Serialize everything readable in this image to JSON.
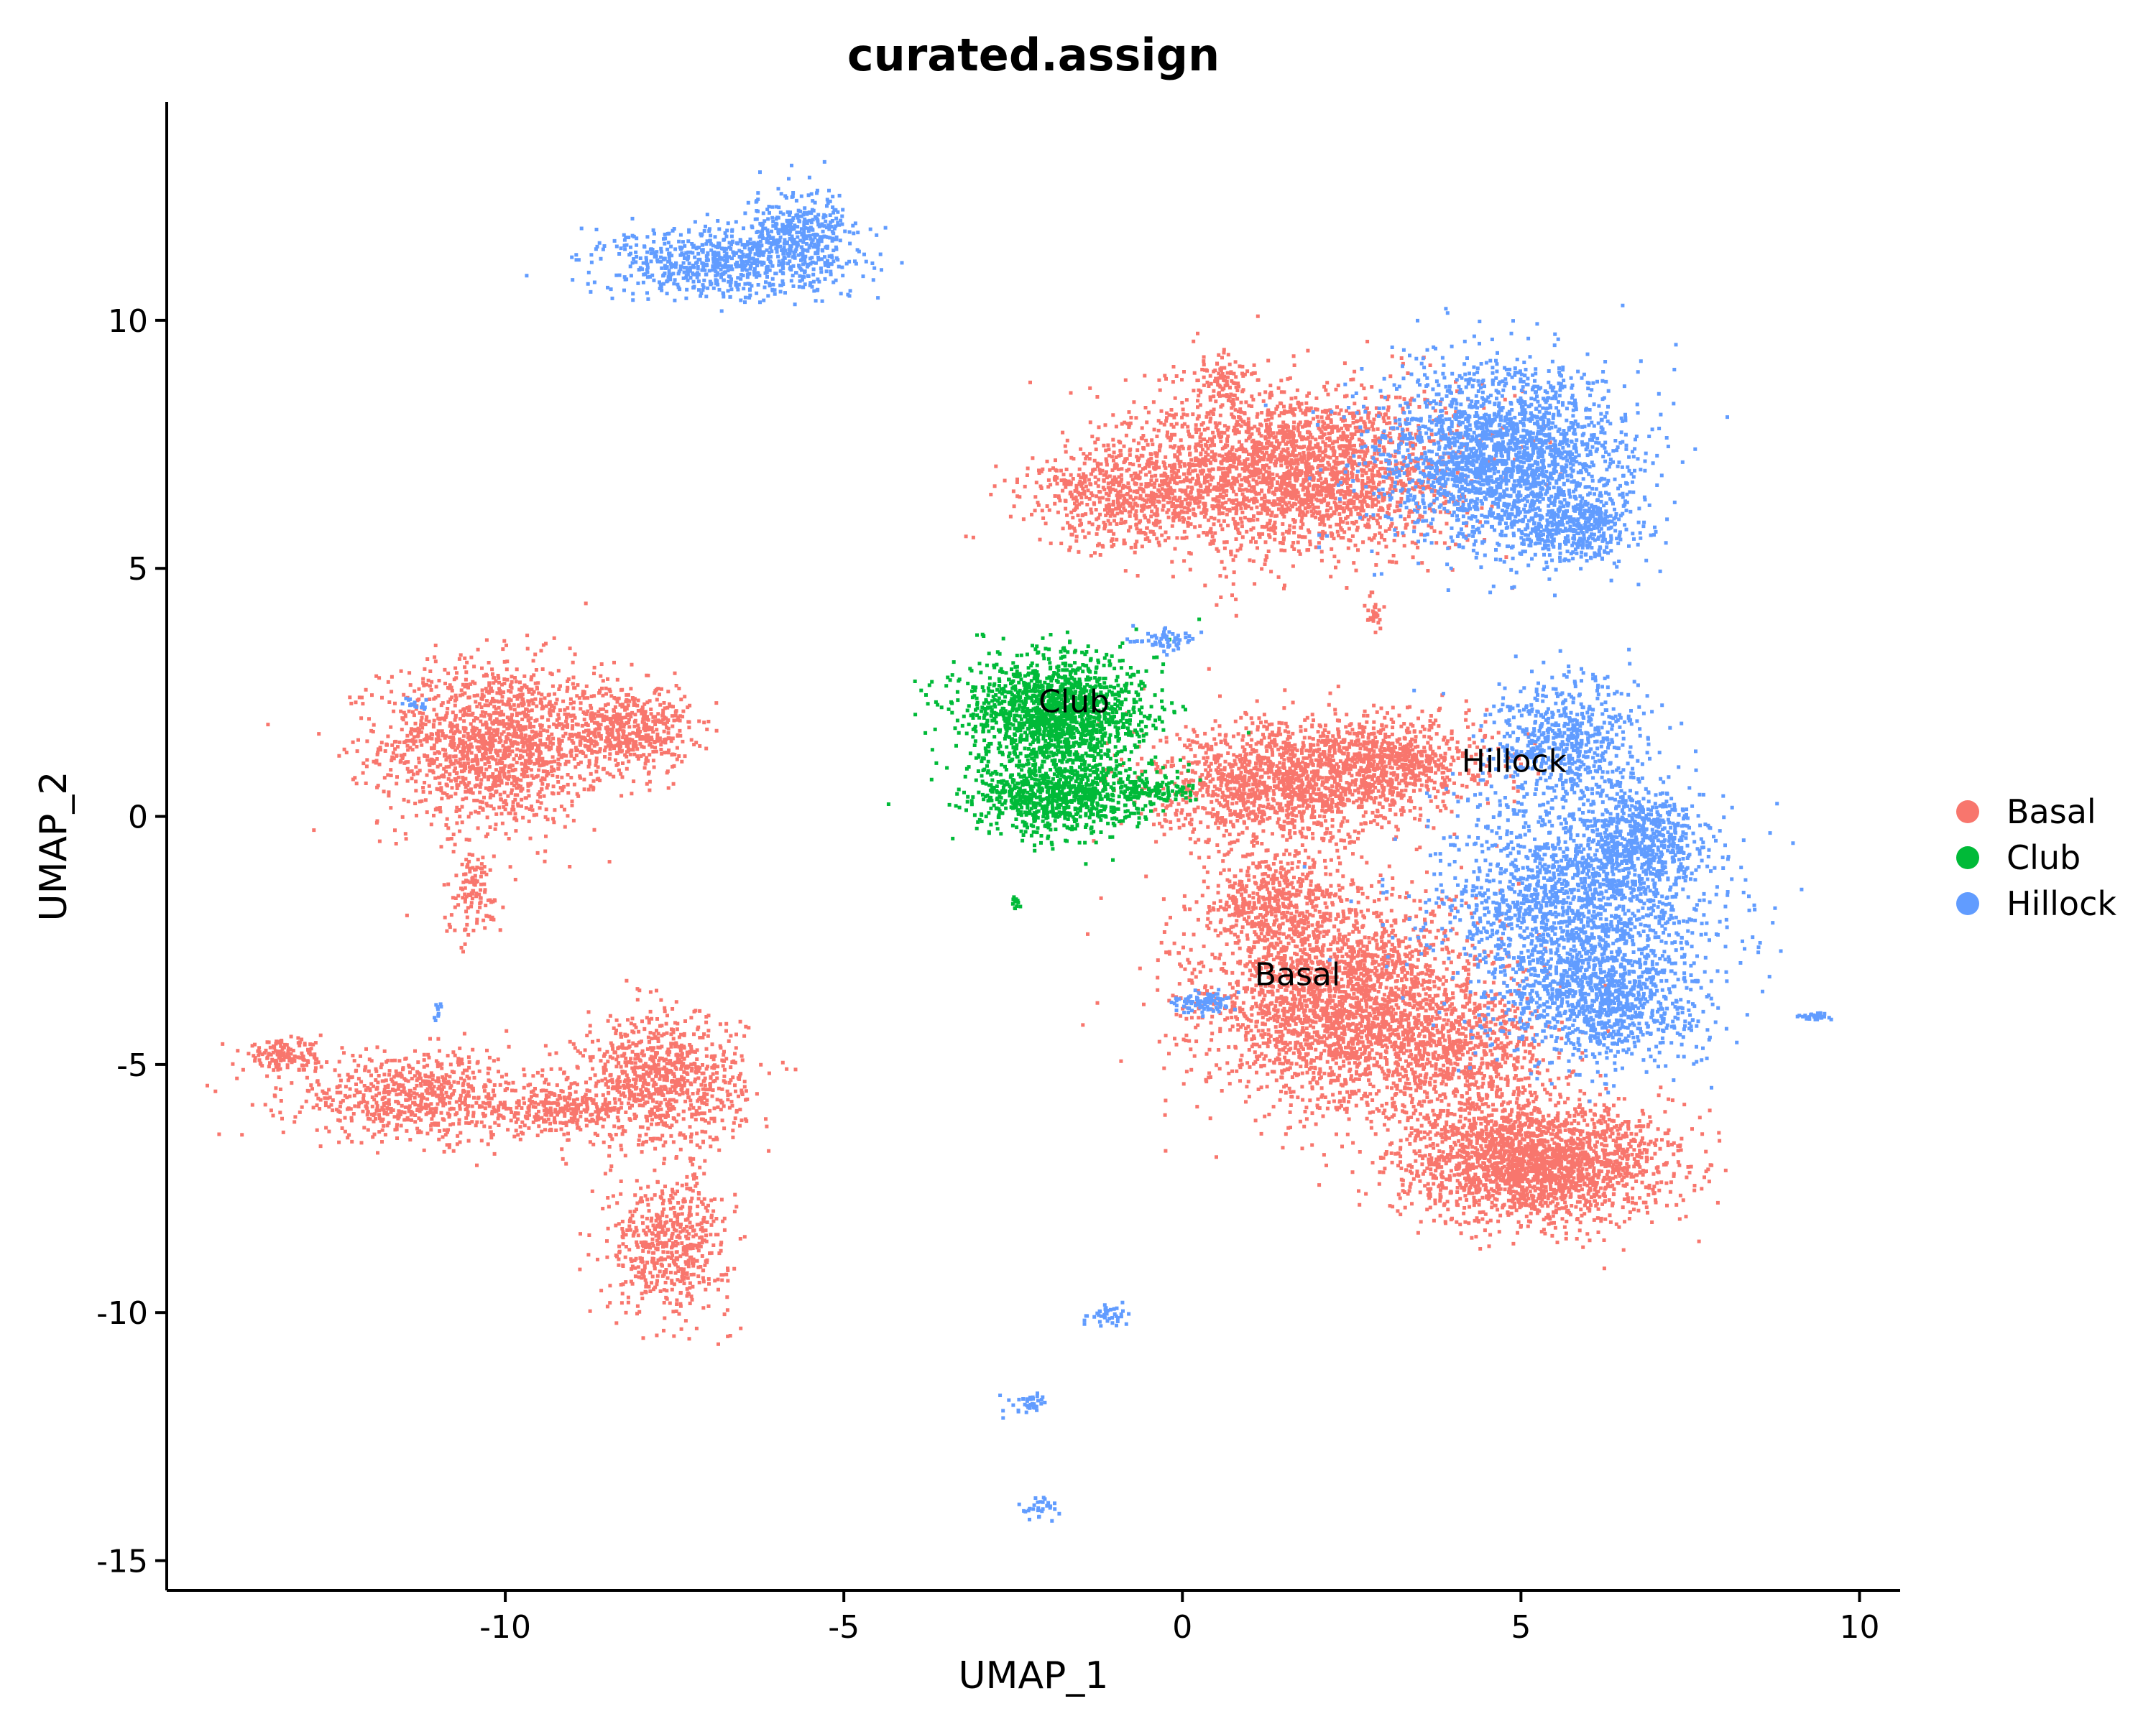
{
  "chart_data": {
    "type": "scatter",
    "title": "curated.assign",
    "xlabel": "UMAP_1",
    "ylabel": "UMAP_2",
    "xlim": [
      -15,
      10.6
    ],
    "ylim": [
      -15.6,
      14.4
    ],
    "xticks": [
      -10,
      -5,
      0,
      5,
      10
    ],
    "yticks": [
      10,
      5,
      0,
      -5,
      -10,
      -15
    ],
    "xtick_labels": [
      "-10",
      "-5",
      "0",
      "5",
      "10"
    ],
    "ytick_labels": [
      "10",
      "5",
      "0",
      "-5",
      "-10",
      "-15"
    ],
    "grid": false,
    "legend_position": "right",
    "series": [
      {
        "name": "Basal",
        "color": "#F8766D",
        "clusters": [
          {
            "cx": -10.2,
            "cy": 1.5,
            "sx": 1.1,
            "sy": 1.1,
            "n": 1500
          },
          {
            "cx": -8.2,
            "cy": 1.8,
            "sx": 0.6,
            "sy": 0.6,
            "n": 500
          },
          {
            "cx": -10.5,
            "cy": -1.5,
            "sx": 0.3,
            "sy": 0.6,
            "n": 120
          },
          {
            "cx": -11.3,
            "cy": -5.6,
            "sx": 1.3,
            "sy": 0.6,
            "n": 700
          },
          {
            "cx": -13.3,
            "cy": -4.8,
            "sx": 0.4,
            "sy": 0.2,
            "n": 150
          },
          {
            "cx": -9.3,
            "cy": -5.9,
            "sx": 0.7,
            "sy": 0.3,
            "n": 250
          },
          {
            "cx": -7.7,
            "cy": -5.3,
            "sx": 0.8,
            "sy": 0.9,
            "n": 900
          },
          {
            "cx": -7.6,
            "cy": -8.6,
            "sx": 0.6,
            "sy": 0.9,
            "n": 550
          },
          {
            "cx": 1.6,
            "cy": 7.0,
            "sx": 1.6,
            "sy": 1.1,
            "n": 2500
          },
          {
            "cx": -0.8,
            "cy": 6.5,
            "sx": 1.0,
            "sy": 0.7,
            "n": 600
          },
          {
            "cx": 0.6,
            "cy": 8.8,
            "sx": 0.3,
            "sy": 0.4,
            "n": 100
          },
          {
            "cx": 1.5,
            "cy": 0.7,
            "sx": 1.3,
            "sy": 0.8,
            "n": 1500
          },
          {
            "cx": 3.2,
            "cy": 1.2,
            "sx": 0.9,
            "sy": 0.6,
            "n": 600
          },
          {
            "cx": 2.4,
            "cy": -3.8,
            "sx": 1.4,
            "sy": 1.4,
            "n": 2700
          },
          {
            "cx": 1.3,
            "cy": -1.7,
            "sx": 0.7,
            "sy": 0.7,
            "n": 500
          },
          {
            "cx": 5.2,
            "cy": -6.9,
            "sx": 1.3,
            "sy": 0.8,
            "n": 2300
          },
          {
            "cx": 4.2,
            "cy": -4.8,
            "sx": 0.8,
            "sy": 0.8,
            "n": 500
          },
          {
            "cx": 2.8,
            "cy": 4.2,
            "sx": 0.08,
            "sy": 0.3,
            "n": 30
          }
        ]
      },
      {
        "name": "Club",
        "color": "#00BA38",
        "clusters": [
          {
            "cx": -1.9,
            "cy": 2.1,
            "sx": 0.9,
            "sy": 0.8,
            "n": 1600
          },
          {
            "cx": -1.9,
            "cy": 0.4,
            "sx": 0.8,
            "sy": 0.5,
            "n": 800
          },
          {
            "cx": -0.4,
            "cy": 0.5,
            "sx": 0.4,
            "sy": 0.2,
            "n": 120
          },
          {
            "cx": -2.5,
            "cy": -1.7,
            "sx": 0.05,
            "sy": 0.1,
            "n": 12
          }
        ]
      },
      {
        "name": "Hillock",
        "color": "#619CFF",
        "clusters": [
          {
            "cx": -6.8,
            "cy": 11.2,
            "sx": 1.2,
            "sy": 0.5,
            "n": 700
          },
          {
            "cx": -5.7,
            "cy": 11.8,
            "sx": 0.5,
            "sy": 0.6,
            "n": 350
          },
          {
            "cx": 4.7,
            "cy": 7.3,
            "sx": 1.2,
            "sy": 1.2,
            "n": 2200
          },
          {
            "cx": 5.8,
            "cy": 5.9,
            "sx": 0.6,
            "sy": 0.5,
            "n": 400
          },
          {
            "cx": 5.6,
            "cy": 1.6,
            "sx": 0.8,
            "sy": 0.8,
            "n": 600
          },
          {
            "cx": 5.8,
            "cy": -1.8,
            "sx": 1.3,
            "sy": 1.5,
            "n": 1900
          },
          {
            "cx": 6.8,
            "cy": -0.4,
            "sx": 0.6,
            "sy": 0.6,
            "n": 500
          },
          {
            "cx": 6.2,
            "cy": -3.8,
            "sx": 1.0,
            "sy": 0.8,
            "n": 800
          },
          {
            "cx": 0.3,
            "cy": -3.7,
            "sx": 0.3,
            "sy": 0.15,
            "n": 90
          },
          {
            "cx": 9.3,
            "cy": -4.0,
            "sx": 0.15,
            "sy": 0.05,
            "n": 30
          },
          {
            "cx": -1.1,
            "cy": -10.0,
            "sx": 0.25,
            "sy": 0.12,
            "n": 40
          },
          {
            "cx": -2.3,
            "cy": -11.8,
            "sx": 0.25,
            "sy": 0.15,
            "n": 40
          },
          {
            "cx": -2.1,
            "cy": -13.9,
            "sx": 0.2,
            "sy": 0.15,
            "n": 30
          },
          {
            "cx": -0.3,
            "cy": 3.6,
            "sx": 0.3,
            "sy": 0.15,
            "n": 60
          },
          {
            "cx": -11.4,
            "cy": 2.3,
            "sx": 0.15,
            "sy": 0.1,
            "n": 15
          },
          {
            "cx": -11.0,
            "cy": -3.8,
            "sx": 0.05,
            "sy": 0.15,
            "n": 10
          }
        ]
      }
    ],
    "annotations": [
      {
        "text": "Club",
        "x": -1.6,
        "y": 2.3
      },
      {
        "text": "Hillock",
        "x": 4.9,
        "y": 1.1
      },
      {
        "text": "Basal",
        "x": 1.7,
        "y": -3.2
      }
    ]
  },
  "legend": {
    "items": [
      {
        "label": "Basal",
        "color": "#F8766D"
      },
      {
        "label": "Club",
        "color": "#00BA38"
      },
      {
        "label": "Hillock",
        "color": "#619CFF"
      }
    ]
  }
}
